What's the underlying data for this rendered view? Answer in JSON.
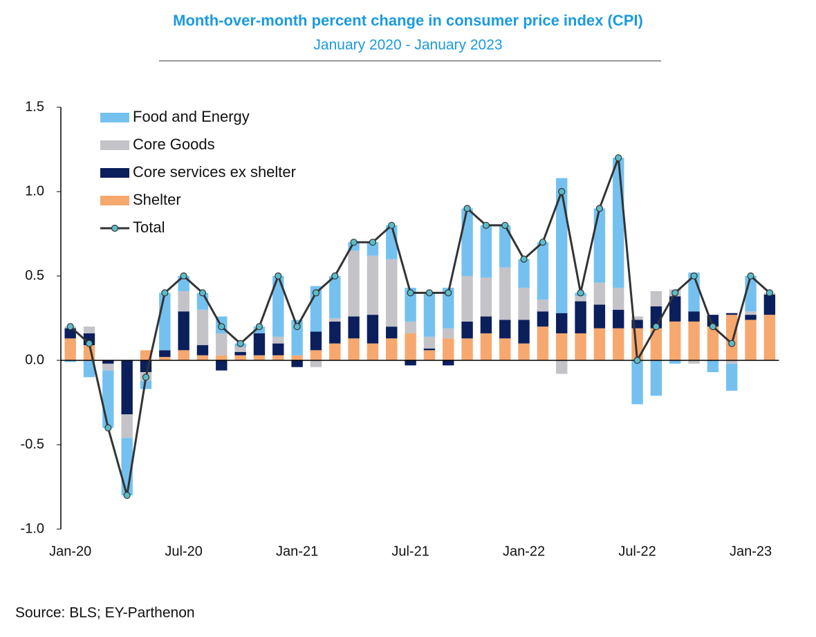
{
  "chart_data": {
    "type": "bar",
    "title": "Month-over-month percent change in consumer price index (CPI)",
    "subtitle": "January 2020 - January 2023",
    "source": "Source: BLS; EY-Parthenon",
    "stacked": true,
    "categories": [
      "Jan-20",
      null,
      null,
      null,
      null,
      null,
      "Jul-20",
      null,
      null,
      null,
      null,
      null,
      "Jan-21",
      null,
      null,
      null,
      null,
      null,
      "Jul-21",
      null,
      null,
      null,
      null,
      null,
      "Jan-22",
      null,
      null,
      null,
      null,
      null,
      "Jul-22",
      null,
      null,
      null,
      null,
      null,
      "Jan-23",
      null
    ],
    "series": [
      {
        "name": "Food and Energy",
        "color": "#74c1f0",
        "values": [
          -0.01,
          -0.1,
          -0.34,
          -0.34,
          -0.05,
          0.34,
          0.09,
          0.1,
          0.1,
          0.02,
          0.04,
          0.36,
          0.21,
          0.27,
          0.25,
          0.05,
          0.08,
          0.2,
          0.2,
          0.26,
          0.24,
          0.4,
          0.31,
          0.25,
          0.17,
          0.34,
          0.8,
          0.02,
          0.44,
          0.77,
          -0.26,
          -0.21,
          -0.02,
          0.23,
          -0.07,
          -0.16,
          0.21,
          0.0
        ]
      },
      {
        "name": "Core Goods",
        "color": "#c3c3c8",
        "values": [
          0.01,
          0.04,
          -0.04,
          -0.14,
          -0.05,
          0.0,
          0.12,
          0.21,
          0.13,
          0.03,
          0.0,
          0.04,
          0.0,
          -0.04,
          0.02,
          0.39,
          0.35,
          0.4,
          0.07,
          0.07,
          0.06,
          0.27,
          0.23,
          0.31,
          0.19,
          0.07,
          -0.08,
          0.03,
          0.13,
          0.13,
          0.02,
          0.09,
          0.04,
          -0.02,
          0.0,
          -0.02,
          0.02,
          0.01
        ]
      },
      {
        "name": "Core services ex shelter",
        "color": "#0b1f5c",
        "values": [
          0.06,
          0.07,
          -0.02,
          -0.32,
          -0.07,
          0.04,
          0.23,
          0.06,
          -0.06,
          0.02,
          0.13,
          0.07,
          -0.04,
          0.11,
          0.13,
          0.13,
          0.17,
          0.07,
          -0.03,
          0.01,
          -0.03,
          0.1,
          0.1,
          0.11,
          0.14,
          0.09,
          0.12,
          0.19,
          0.14,
          0.11,
          0.05,
          0.13,
          0.15,
          0.06,
          0.07,
          0.01,
          0.03,
          0.12
        ]
      },
      {
        "name": "Shelter",
        "color": "#f7a86e",
        "values": [
          0.13,
          0.09,
          0.0,
          0.0,
          0.06,
          0.02,
          0.06,
          0.03,
          0.03,
          0.03,
          0.03,
          0.03,
          0.03,
          0.06,
          0.1,
          0.13,
          0.1,
          0.13,
          0.16,
          0.06,
          0.13,
          0.13,
          0.16,
          0.13,
          0.1,
          0.2,
          0.16,
          0.16,
          0.19,
          0.19,
          0.19,
          0.19,
          0.23,
          0.23,
          0.2,
          0.27,
          0.24,
          0.27
        ]
      },
      {
        "name": "Total",
        "type": "line",
        "color": "#333333",
        "marker_color": "#5bbcc8",
        "values": [
          0.2,
          0.1,
          -0.4,
          -0.8,
          -0.1,
          0.4,
          0.5,
          0.4,
          0.2,
          0.1,
          0.2,
          0.5,
          0.2,
          0.4,
          0.5,
          0.7,
          0.7,
          0.8,
          0.4,
          0.4,
          0.4,
          0.9,
          0.8,
          0.8,
          0.6,
          0.7,
          1.0,
          0.4,
          0.9,
          1.2,
          0.0,
          0.2,
          0.4,
          0.5,
          0.2,
          0.1,
          0.5,
          0.4
        ]
      }
    ],
    "stack_order": [
      "Shelter",
      "Core services ex shelter",
      "Core Goods",
      "Food and Energy"
    ],
    "ylim": [
      -1.0,
      1.5
    ],
    "yticks": [
      {
        "value": -1.0,
        "label": "-1.0"
      },
      -0.5,
      {
        "value": 0.0,
        "label": "0.0"
      },
      0.5,
      {
        "value": 1.0,
        "label": "1.0"
      },
      1.5
    ],
    "legend": "upper left"
  }
}
